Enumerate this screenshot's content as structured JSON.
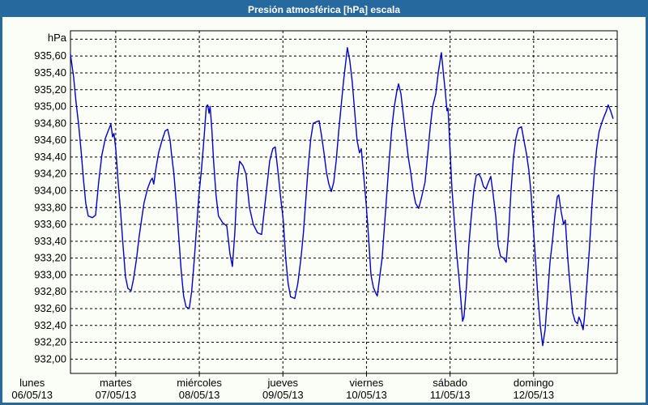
{
  "window": {
    "title": "Presión atmosférica [hPa] escala"
  },
  "colors": {
    "frame": "#26699e",
    "titlebar_text": "#ffffff",
    "plot_background": "#fbfdf7",
    "grid": "#000000",
    "axis": "#000000",
    "line": "#0000cd",
    "label_text": "#000000"
  },
  "chart_data": {
    "type": "line",
    "title": "Presión atmosférica [hPa] escala",
    "grid": "dashed both axes",
    "legend": "none",
    "y_axis": {
      "unit_label": "hPa",
      "ylim": [
        931.83,
        935.9
      ],
      "grid_values": [
        935.8,
        935.6,
        935.4,
        935.2,
        935.0,
        934.8,
        934.6,
        934.4,
        934.2,
        934.0,
        933.8,
        933.6,
        933.4,
        933.2,
        933.0,
        932.8,
        932.6,
        932.4,
        932.2,
        932.0
      ],
      "ticks": [
        {
          "v": 935.6,
          "label": "935,60"
        },
        {
          "v": 935.4,
          "label": "935,40"
        },
        {
          "v": 935.2,
          "label": "935,20"
        },
        {
          "v": 935.0,
          "label": "935,00"
        },
        {
          "v": 934.8,
          "label": "934,80"
        },
        {
          "v": 934.6,
          "label": "934,60"
        },
        {
          "v": 934.4,
          "label": "934,40"
        },
        {
          "v": 934.2,
          "label": "934,20"
        },
        {
          "v": 934.0,
          "label": "934,00"
        },
        {
          "v": 933.8,
          "label": "933,80"
        },
        {
          "v": 933.6,
          "label": "933,60"
        },
        {
          "v": 933.4,
          "label": "933,40"
        },
        {
          "v": 933.2,
          "label": "933,20"
        },
        {
          "v": 933.0,
          "label": "933,00"
        },
        {
          "v": 932.8,
          "label": "932,80"
        },
        {
          "v": 932.6,
          "label": "932,60"
        },
        {
          "v": 932.4,
          "label": "932,40"
        },
        {
          "v": 932.2,
          "label": "932,20"
        },
        {
          "v": 932.0,
          "label": "932,00"
        }
      ]
    },
    "x_axis": {
      "xlim_hours": [
        11,
        168
      ],
      "days": [
        {
          "name": "lunes",
          "date": "06/05/13",
          "t": 0
        },
        {
          "name": "martes",
          "date": "07/05/13",
          "t": 24
        },
        {
          "name": "miércoles",
          "date": "08/05/13",
          "t": 48
        },
        {
          "name": "jueves",
          "date": "09/05/13",
          "t": 72
        },
        {
          "name": "viernes",
          "date": "10/05/13",
          "t": 96
        },
        {
          "name": "sábado",
          "date": "11/05/13",
          "t": 120
        },
        {
          "name": "domingo",
          "date": "12/05/13",
          "t": 144
        }
      ]
    },
    "series": [
      {
        "name": "Presión atmosférica",
        "unit": "hPa",
        "points": [
          [
            11.0,
            935.62
          ],
          [
            11.9,
            935.35
          ],
          [
            12.6,
            935.05
          ],
          [
            13.3,
            934.8
          ],
          [
            14.0,
            934.5
          ],
          [
            14.7,
            934.15
          ],
          [
            15.4,
            933.85
          ],
          [
            16.1,
            933.7
          ],
          [
            17.3,
            933.68
          ],
          [
            18.2,
            933.71
          ],
          [
            19.1,
            934.1
          ],
          [
            20.0,
            934.42
          ],
          [
            21.0,
            934.62
          ],
          [
            21.9,
            934.72
          ],
          [
            22.6,
            934.79
          ],
          [
            23.1,
            934.64
          ],
          [
            23.5,
            934.68
          ],
          [
            24.0,
            934.5
          ],
          [
            24.7,
            934.1
          ],
          [
            25.4,
            933.75
          ],
          [
            26.1,
            933.35
          ],
          [
            26.8,
            932.98
          ],
          [
            27.5,
            932.84
          ],
          [
            28.4,
            932.81
          ],
          [
            29.1,
            932.95
          ],
          [
            30.0,
            933.2
          ],
          [
            30.7,
            933.45
          ],
          [
            31.4,
            933.65
          ],
          [
            32.1,
            933.85
          ],
          [
            33.1,
            934.02
          ],
          [
            34.0,
            934.12
          ],
          [
            34.5,
            934.15
          ],
          [
            34.9,
            934.08
          ],
          [
            35.6,
            934.28
          ],
          [
            36.3,
            934.45
          ],
          [
            37.3,
            934.6
          ],
          [
            38.2,
            934.71
          ],
          [
            38.9,
            934.73
          ],
          [
            39.6,
            934.6
          ],
          [
            40.0,
            934.44
          ],
          [
            40.7,
            934.2
          ],
          [
            41.4,
            933.85
          ],
          [
            42.1,
            933.45
          ],
          [
            42.8,
            933.05
          ],
          [
            43.5,
            932.75
          ],
          [
            44.2,
            932.62
          ],
          [
            45.1,
            932.6
          ],
          [
            45.8,
            932.8
          ],
          [
            46.5,
            933.15
          ],
          [
            47.2,
            933.55
          ],
          [
            47.9,
            933.95
          ],
          [
            48.6,
            934.25
          ],
          [
            49.3,
            934.6
          ],
          [
            50.0,
            935.0
          ],
          [
            50.4,
            935.02
          ],
          [
            50.8,
            934.92
          ],
          [
            51.1,
            935.0
          ],
          [
            51.6,
            934.72
          ],
          [
            52.1,
            934.35
          ],
          [
            52.8,
            933.95
          ],
          [
            53.5,
            933.7
          ],
          [
            54.7,
            933.62
          ],
          [
            55.9,
            933.58
          ],
          [
            56.8,
            933.25
          ],
          [
            57.5,
            933.1
          ],
          [
            58.2,
            933.5
          ],
          [
            58.9,
            934.1
          ],
          [
            59.6,
            934.35
          ],
          [
            60.5,
            934.3
          ],
          [
            61.4,
            934.2
          ],
          [
            62.4,
            933.8
          ],
          [
            63.5,
            933.6
          ],
          [
            64.7,
            933.5
          ],
          [
            65.9,
            933.48
          ],
          [
            67.0,
            933.9
          ],
          [
            68.2,
            934.35
          ],
          [
            69.1,
            934.5
          ],
          [
            69.8,
            934.52
          ],
          [
            70.7,
            934.18
          ],
          [
            71.4,
            933.9
          ],
          [
            72.1,
            933.65
          ],
          [
            72.8,
            933.2
          ],
          [
            73.5,
            932.9
          ],
          [
            74.2,
            932.74
          ],
          [
            75.4,
            932.72
          ],
          [
            76.3,
            932.9
          ],
          [
            77.2,
            933.2
          ],
          [
            77.9,
            933.5
          ],
          [
            78.6,
            933.9
          ],
          [
            79.3,
            934.3
          ],
          [
            80.0,
            934.62
          ],
          [
            80.7,
            934.8
          ],
          [
            81.7,
            934.82
          ],
          [
            82.4,
            934.83
          ],
          [
            83.1,
            934.65
          ],
          [
            83.8,
            934.45
          ],
          [
            84.5,
            934.22
          ],
          [
            85.2,
            934.08
          ],
          [
            85.9,
            933.99
          ],
          [
            86.6,
            934.1
          ],
          [
            87.3,
            934.35
          ],
          [
            88.0,
            934.7
          ],
          [
            88.7,
            935.0
          ],
          [
            89.4,
            935.3
          ],
          [
            90.1,
            935.55
          ],
          [
            90.5,
            935.7
          ],
          [
            91.2,
            935.55
          ],
          [
            91.9,
            935.3
          ],
          [
            92.6,
            934.95
          ],
          [
            93.3,
            934.6
          ],
          [
            94.0,
            934.45
          ],
          [
            94.5,
            934.5
          ],
          [
            95.2,
            934.18
          ],
          [
            95.9,
            933.85
          ],
          [
            96.6,
            933.45
          ],
          [
            97.3,
            933.0
          ],
          [
            98.0,
            932.85
          ],
          [
            98.7,
            932.78
          ],
          [
            99.1,
            932.75
          ],
          [
            99.8,
            932.98
          ],
          [
            100.5,
            933.2
          ],
          [
            101.2,
            933.6
          ],
          [
            101.9,
            934.0
          ],
          [
            102.6,
            934.4
          ],
          [
            103.3,
            934.75
          ],
          [
            104.0,
            935.0
          ],
          [
            104.7,
            935.18
          ],
          [
            105.2,
            935.27
          ],
          [
            105.9,
            935.15
          ],
          [
            106.6,
            934.9
          ],
          [
            107.3,
            934.65
          ],
          [
            108.0,
            934.4
          ],
          [
            108.7,
            934.22
          ],
          [
            109.4,
            934.0
          ],
          [
            110.1,
            933.85
          ],
          [
            111.0,
            933.79
          ],
          [
            111.7,
            933.9
          ],
          [
            112.8,
            934.1
          ],
          [
            113.5,
            934.4
          ],
          [
            114.3,
            934.75
          ],
          [
            115.0,
            935.0
          ],
          [
            115.9,
            935.15
          ],
          [
            116.6,
            935.4
          ],
          [
            117.5,
            935.64
          ],
          [
            118.2,
            935.35
          ],
          [
            118.7,
            935.15
          ],
          [
            119.1,
            934.95
          ],
          [
            119.4,
            934.98
          ],
          [
            119.8,
            934.65
          ],
          [
            120.5,
            934.05
          ],
          [
            121.2,
            933.65
          ],
          [
            121.9,
            933.25
          ],
          [
            122.6,
            932.95
          ],
          [
            123.1,
            932.7
          ],
          [
            123.6,
            932.45
          ],
          [
            124.0,
            932.5
          ],
          [
            124.7,
            932.85
          ],
          [
            125.4,
            933.35
          ],
          [
            126.1,
            933.7
          ],
          [
            126.8,
            934.0
          ],
          [
            127.5,
            934.18
          ],
          [
            128.2,
            934.2
          ],
          [
            128.9,
            934.15
          ],
          [
            129.6,
            934.05
          ],
          [
            130.3,
            934.02
          ],
          [
            131.0,
            934.1
          ],
          [
            131.7,
            934.17
          ],
          [
            132.4,
            933.95
          ],
          [
            133.1,
            933.7
          ],
          [
            133.8,
            933.35
          ],
          [
            134.5,
            933.22
          ],
          [
            135.4,
            933.2
          ],
          [
            136.1,
            933.15
          ],
          [
            136.8,
            933.5
          ],
          [
            137.5,
            934.0
          ],
          [
            138.2,
            934.4
          ],
          [
            138.9,
            934.62
          ],
          [
            139.6,
            934.74
          ],
          [
            140.5,
            934.76
          ],
          [
            141.2,
            934.6
          ],
          [
            141.9,
            934.45
          ],
          [
            142.6,
            934.25
          ],
          [
            143.3,
            933.95
          ],
          [
            143.8,
            933.62
          ],
          [
            144.5,
            933.2
          ],
          [
            145.2,
            932.75
          ],
          [
            145.9,
            932.4
          ],
          [
            146.6,
            932.16
          ],
          [
            147.3,
            932.35
          ],
          [
            148.0,
            932.75
          ],
          [
            148.7,
            933.15
          ],
          [
            149.4,
            933.4
          ],
          [
            150.1,
            933.7
          ],
          [
            150.8,
            933.93
          ],
          [
            151.2,
            933.95
          ],
          [
            151.9,
            933.75
          ],
          [
            152.6,
            933.6
          ],
          [
            153.1,
            933.65
          ],
          [
            153.8,
            933.2
          ],
          [
            154.5,
            932.85
          ],
          [
            155.2,
            932.55
          ],
          [
            155.9,
            932.45
          ],
          [
            156.6,
            932.42
          ],
          [
            157.0,
            932.5
          ],
          [
            157.5,
            932.45
          ],
          [
            158.2,
            932.35
          ],
          [
            158.6,
            932.5
          ],
          [
            159.3,
            932.9
          ],
          [
            160.0,
            933.3
          ],
          [
            160.7,
            933.8
          ],
          [
            161.4,
            934.2
          ],
          [
            162.1,
            934.5
          ],
          [
            162.8,
            934.7
          ],
          [
            163.5,
            934.8
          ],
          [
            164.2,
            934.88
          ],
          [
            164.9,
            934.95
          ],
          [
            165.4,
            935.02
          ],
          [
            166.1,
            934.95
          ],
          [
            166.8,
            934.86
          ]
        ]
      }
    ]
  }
}
